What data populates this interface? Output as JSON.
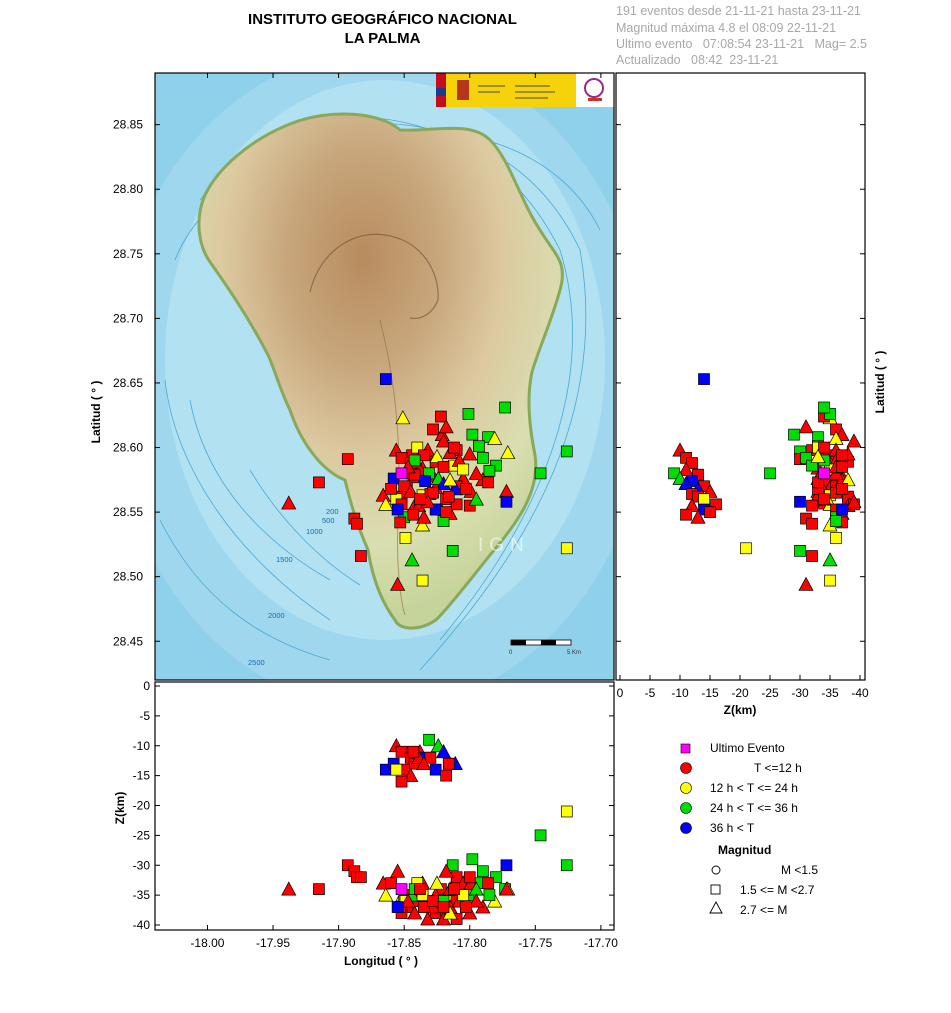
{
  "header": {
    "title": "INSTITUTO GEOGRÁFICO NACIONAL",
    "subtitle": "LA PALMA",
    "info": [
      "191 eventos desde 21-11-21 hasta 23-11-21",
      "Magnitud máxima 4.8 el 08:09 22-11-21",
      "Ultimo evento   07:08:54 23-11-21   Mag= 2.5",
      "Actualizado   08:42  23-11-21"
    ]
  },
  "map": {
    "watermark": "IGN",
    "scale_labels": [
      "0",
      "5 Km"
    ],
    "contour_labels": [
      "200",
      "500",
      "1000",
      "1500",
      "2000",
      "2500"
    ]
  },
  "axes": {
    "lat_label": "Latitud ( ° )",
    "lon_label": "Longitud ( ° )",
    "depth_label": "Z(km)",
    "lat_ticks": [
      "28.85",
      "28.80",
      "28.75",
      "28.70",
      "28.65",
      "28.60",
      "28.55",
      "28.50",
      "28.45"
    ],
    "lon_ticks": [
      "-18.00",
      "-17.95",
      "-17.90",
      "-17.85",
      "-17.80",
      "-17.75",
      "-17.70"
    ],
    "depth_ticks_right": [
      "0",
      "-5",
      "-10",
      "-15",
      "-20",
      "-25",
      "-30",
      "-35",
      "-40"
    ],
    "depth_ticks_bottom": [
      "0",
      "-5",
      "-10",
      "-15",
      "-20",
      "-25",
      "-30",
      "-35",
      "-40"
    ]
  },
  "legend": {
    "last_event": "Ultimo Evento",
    "times": [
      {
        "label": "T <=12 h",
        "color": "#ff0000"
      },
      {
        "label": "12 h  < T <= 24 h",
        "color": "#ffff00"
      },
      {
        "label": "24 h  < T <= 36 h",
        "color": "#00dd00"
      },
      {
        "label": "36 h <  T",
        "color": "#0000ff"
      }
    ],
    "magnitude_title": "Magnitud",
    "magnitudes": [
      "M <1.5",
      "1.5 <= M <2.7",
      "2.7 <= M"
    ]
  },
  "chart_data": {
    "type": "scatter",
    "xlim": [
      -18.04,
      -17.69
    ],
    "ylim": [
      28.42,
      28.89
    ],
    "zlim": [
      0,
      -40
    ],
    "colors": {
      "r": "#ff0000",
      "y": "#ffff00",
      "g": "#00dd00",
      "b": "#0000ff",
      "m": "#ff00ff"
    },
    "events": [
      {
        "lon": -17.864,
        "lat": 28.653,
        "z": -14,
        "c": "b",
        "m": "sq"
      },
      {
        "lon": -17.851,
        "lat": 28.623,
        "z": -35,
        "c": "y",
        "m": "tri"
      },
      {
        "lon": -17.822,
        "lat": 28.624,
        "z": -34,
        "c": "r",
        "m": "sq"
      },
      {
        "lon": -17.801,
        "lat": 28.626,
        "z": -35,
        "c": "g",
        "m": "sq"
      },
      {
        "lon": -17.773,
        "lat": 28.631,
        "z": -34,
        "c": "g",
        "m": "sq"
      },
      {
        "lon": -17.828,
        "lat": 28.614,
        "z": -36,
        "c": "r",
        "m": "sq"
      },
      {
        "lon": -17.821,
        "lat": 28.61,
        "z": -37,
        "c": "r",
        "m": "tri"
      },
      {
        "lon": -17.786,
        "lat": 28.608,
        "z": -33,
        "c": "g",
        "m": "sq"
      },
      {
        "lon": -17.781,
        "lat": 28.607,
        "z": -36,
        "c": "y",
        "m": "tri"
      },
      {
        "lon": -17.81,
        "lat": 28.598,
        "z": -32,
        "c": "r",
        "m": "sq"
      },
      {
        "lon": -17.793,
        "lat": 28.601,
        "z": -33,
        "c": "g",
        "m": "sq"
      },
      {
        "lon": -17.726,
        "lat": 28.597,
        "z": -30,
        "c": "g",
        "m": "sq"
      },
      {
        "lon": -17.771,
        "lat": 28.596,
        "z": -34,
        "c": "y",
        "m": "tri"
      },
      {
        "lon": -17.893,
        "lat": 28.591,
        "z": -30,
        "c": "r",
        "m": "sq"
      },
      {
        "lon": -17.844,
        "lat": 28.594,
        "z": -35,
        "c": "r",
        "m": "sq"
      },
      {
        "lon": -17.832,
        "lat": 28.598,
        "z": -36,
        "c": "r",
        "m": "tri"
      },
      {
        "lon": -17.815,
        "lat": 28.596,
        "z": -34,
        "c": "r",
        "m": "tri"
      },
      {
        "lon": -17.79,
        "lat": 28.592,
        "z": -31,
        "c": "g",
        "m": "sq"
      },
      {
        "lon": -17.826,
        "lat": 28.589,
        "z": -38,
        "c": "r",
        "m": "sq"
      },
      {
        "lon": -17.836,
        "lat": 28.584,
        "z": -33,
        "c": "r",
        "m": "tri"
      },
      {
        "lon": -17.812,
        "lat": 28.586,
        "z": -36,
        "c": "y",
        "m": "sq"
      },
      {
        "lon": -17.78,
        "lat": 28.586,
        "z": -32,
        "c": "g",
        "m": "sq"
      },
      {
        "lon": -17.785,
        "lat": 28.582,
        "z": -35,
        "c": "g",
        "m": "sq"
      },
      {
        "lon": -17.746,
        "lat": 28.58,
        "z": -25,
        "c": "g",
        "m": "sq"
      },
      {
        "lon": -17.852,
        "lat": 28.58,
        "z": -34,
        "c": "m",
        "m": "sq"
      },
      {
        "lon": -17.858,
        "lat": 28.576,
        "z": -13,
        "c": "b",
        "m": "sq"
      },
      {
        "lon": -17.843,
        "lat": 28.577,
        "z": -36,
        "c": "r",
        "m": "sq"
      },
      {
        "lon": -17.828,
        "lat": 28.578,
        "z": -37,
        "c": "r",
        "m": "tri"
      },
      {
        "lon": -17.805,
        "lat": 28.576,
        "z": -33,
        "c": "r",
        "m": "tri"
      },
      {
        "lon": -17.915,
        "lat": 28.573,
        "z": -34,
        "c": "r",
        "m": "sq"
      },
      {
        "lon": -17.848,
        "lat": 28.569,
        "z": -37,
        "c": "r",
        "m": "sq"
      },
      {
        "lon": -17.826,
        "lat": 28.569,
        "z": -35,
        "c": "r",
        "m": "tri"
      },
      {
        "lon": -17.81,
        "lat": 28.57,
        "z": -36,
        "c": "r",
        "m": "sq"
      },
      {
        "lon": -17.799,
        "lat": 28.566,
        "z": -33,
        "c": "r",
        "m": "tri"
      },
      {
        "lon": -17.772,
        "lat": 28.566,
        "z": -34,
        "c": "r",
        "m": "tri"
      },
      {
        "lon": -17.866,
        "lat": 28.563,
        "z": -33,
        "c": "r",
        "m": "tri"
      },
      {
        "lon": -17.852,
        "lat": 28.562,
        "z": -38,
        "c": "r",
        "m": "sq"
      },
      {
        "lon": -17.836,
        "lat": 28.563,
        "z": -35,
        "c": "y",
        "m": "sq"
      },
      {
        "lon": -17.818,
        "lat": 28.56,
        "z": -38,
        "c": "r",
        "m": "sq"
      },
      {
        "lon": -17.938,
        "lat": 28.557,
        "z": -34,
        "c": "r",
        "m": "tri"
      },
      {
        "lon": -17.864,
        "lat": 28.556,
        "z": -35,
        "c": "y",
        "m": "tri"
      },
      {
        "lon": -17.842,
        "lat": 28.555,
        "z": -38,
        "c": "r",
        "m": "tri"
      },
      {
        "lon": -17.825,
        "lat": 28.552,
        "z": -36,
        "c": "r",
        "m": "sq"
      },
      {
        "lon": -17.81,
        "lat": 28.556,
        "z": -39,
        "c": "r",
        "m": "sq"
      },
      {
        "lon": -17.8,
        "lat": 28.555,
        "z": -32,
        "c": "r",
        "m": "sq"
      },
      {
        "lon": -17.772,
        "lat": 28.558,
        "z": -30,
        "c": "b",
        "m": "sq"
      },
      {
        "lon": -17.815,
        "lat": 28.549,
        "z": -37,
        "c": "r",
        "m": "tri"
      },
      {
        "lon": -17.85,
        "lat": 28.546,
        "z": -36,
        "c": "g",
        "m": "sq"
      },
      {
        "lon": -17.888,
        "lat": 28.545,
        "z": -31,
        "c": "r",
        "m": "sq"
      },
      {
        "lon": -17.886,
        "lat": 28.541,
        "z": -32,
        "c": "r",
        "m": "sq"
      },
      {
        "lon": -17.853,
        "lat": 28.542,
        "z": -37,
        "c": "r",
        "m": "sq"
      },
      {
        "lon": -17.836,
        "lat": 28.54,
        "z": -35,
        "c": "y",
        "m": "tri"
      },
      {
        "lon": -17.82,
        "lat": 28.543,
        "z": -36,
        "c": "g",
        "m": "sq"
      },
      {
        "lon": -17.849,
        "lat": 28.53,
        "z": -36,
        "c": "y",
        "m": "sq"
      },
      {
        "lon": -17.813,
        "lat": 28.52,
        "z": -30,
        "c": "g",
        "m": "sq"
      },
      {
        "lon": -17.726,
        "lat": 28.522,
        "z": -21,
        "c": "y",
        "m": "sq"
      },
      {
        "lon": -17.883,
        "lat": 28.516,
        "z": -32,
        "c": "r",
        "m": "sq"
      },
      {
        "lon": -17.844,
        "lat": 28.513,
        "z": -35,
        "c": "g",
        "m": "tri"
      },
      {
        "lon": -17.855,
        "lat": 28.494,
        "z": -31,
        "c": "r",
        "m": "tri"
      },
      {
        "lon": -17.836,
        "lat": 28.497,
        "z": -35,
        "c": "y",
        "m": "sq"
      },
      {
        "lon": -17.856,
        "lat": 28.598,
        "z": -10,
        "c": "r",
        "m": "tri"
      },
      {
        "lon": -17.852,
        "lat": 28.592,
        "z": -11,
        "c": "r",
        "m": "sq"
      },
      {
        "lon": -17.845,
        "lat": 28.588,
        "z": -12,
        "c": "r",
        "m": "sq"
      },
      {
        "lon": -17.838,
        "lat": 28.583,
        "z": -11,
        "c": "r",
        "m": "tri"
      },
      {
        "lon": -17.831,
        "lat": 28.58,
        "z": -9,
        "c": "g",
        "m": "sq"
      },
      {
        "lon": -17.842,
        "lat": 28.579,
        "z": -13,
        "c": "r",
        "m": "sq"
      },
      {
        "lon": -17.824,
        "lat": 28.576,
        "z": -10,
        "c": "g",
        "m": "tri"
      },
      {
        "lon": -17.834,
        "lat": 28.574,
        "z": -12,
        "c": "b",
        "m": "sq"
      },
      {
        "lon": -17.82,
        "lat": 28.572,
        "z": -11,
        "c": "b",
        "m": "tri"
      },
      {
        "lon": -17.85,
        "lat": 28.57,
        "z": -14,
        "c": "r",
        "m": "sq"
      },
      {
        "lon": -17.811,
        "lat": 28.568,
        "z": -13,
        "c": "b",
        "m": "tri"
      },
      {
        "lon": -17.845,
        "lat": 28.566,
        "z": -15,
        "c": "r",
        "m": "tri"
      },
      {
        "lon": -17.83,
        "lat": 28.564,
        "z": -12,
        "c": "r",
        "m": "sq"
      },
      {
        "lon": -17.816,
        "lat": 28.562,
        "z": -13,
        "c": "r",
        "m": "sq"
      },
      {
        "lon": -17.856,
        "lat": 28.56,
        "z": -14,
        "c": "y",
        "m": "sq"
      },
      {
        "lon": -17.852,
        "lat": 28.556,
        "z": -16,
        "c": "r",
        "m": "sq"
      },
      {
        "lon": -17.839,
        "lat": 28.555,
        "z": -12,
        "c": "r",
        "m": "tri"
      },
      {
        "lon": -17.826,
        "lat": 28.552,
        "z": -14,
        "c": "b",
        "m": "sq"
      },
      {
        "lon": -17.843,
        "lat": 28.548,
        "z": -11,
        "c": "r",
        "m": "sq"
      },
      {
        "lon": -17.818,
        "lat": 28.55,
        "z": -15,
        "c": "r",
        "m": "sq"
      },
      {
        "lon": -17.835,
        "lat": 28.546,
        "z": -13,
        "c": "r",
        "m": "tri"
      },
      {
        "lon": -17.8,
        "lat": 28.595,
        "z": -38,
        "c": "r",
        "m": "tri"
      },
      {
        "lon": -17.82,
        "lat": 28.605,
        "z": -39,
        "c": "r",
        "m": "tri"
      },
      {
        "lon": -17.808,
        "lat": 28.59,
        "z": -36,
        "c": "r",
        "m": "tri"
      },
      {
        "lon": -17.79,
        "lat": 28.575,
        "z": -37,
        "c": "r",
        "m": "tri"
      },
      {
        "lon": -17.795,
        "lat": 28.56,
        "z": -34,
        "c": "g",
        "m": "tri"
      },
      {
        "lon": -17.84,
        "lat": 28.6,
        "z": -33,
        "c": "y",
        "m": "sq"
      },
      {
        "lon": -17.835,
        "lat": 28.594,
        "z": -37,
        "c": "r",
        "m": "sq"
      },
      {
        "lon": -17.815,
        "lat": 28.575,
        "z": -38,
        "c": "y",
        "m": "tri"
      },
      {
        "lon": -17.805,
        "lat": 28.583,
        "z": -35,
        "c": "y",
        "m": "sq"
      },
      {
        "lon": -17.828,
        "lat": 28.565,
        "z": -36,
        "c": "r",
        "m": "sq"
      },
      {
        "lon": -17.86,
        "lat": 28.568,
        "z": -33,
        "c": "r",
        "m": "sq"
      },
      {
        "lon": -17.795,
        "lat": 28.58,
        "z": -36,
        "c": "r",
        "m": "tri"
      },
      {
        "lon": -17.812,
        "lat": 28.6,
        "z": -34,
        "c": "r",
        "m": "sq"
      },
      {
        "lon": -17.842,
        "lat": 28.59,
        "z": -34,
        "c": "g",
        "m": "sq"
      },
      {
        "lon": -17.803,
        "lat": 28.568,
        "z": -37,
        "c": "r",
        "m": "sq"
      },
      {
        "lon": -17.832,
        "lat": 28.558,
        "z": -39,
        "c": "r",
        "m": "tri"
      },
      {
        "lon": -17.847,
        "lat": 28.585,
        "z": -36,
        "c": "r",
        "m": "tri"
      },
      {
        "lon": -17.825,
        "lat": 28.593,
        "z": -33,
        "c": "y",
        "m": "tri"
      },
      {
        "lon": -17.798,
        "lat": 28.61,
        "z": -29,
        "c": "g",
        "m": "sq"
      },
      {
        "lon": -17.818,
        "lat": 28.616,
        "z": -31,
        "c": "r",
        "m": "tri"
      },
      {
        "lon": -17.786,
        "lat": 28.573,
        "z": -33,
        "c": "r",
        "m": "sq"
      },
      {
        "lon": -17.855,
        "lat": 28.552,
        "z": -37,
        "c": "b",
        "m": "sq"
      },
      {
        "lon": -17.838,
        "lat": 28.56,
        "z": -34,
        "c": "r",
        "m": "sq"
      },
      {
        "lon": -17.82,
        "lat": 28.585,
        "z": -37,
        "c": "r",
        "m": "sq"
      }
    ]
  }
}
